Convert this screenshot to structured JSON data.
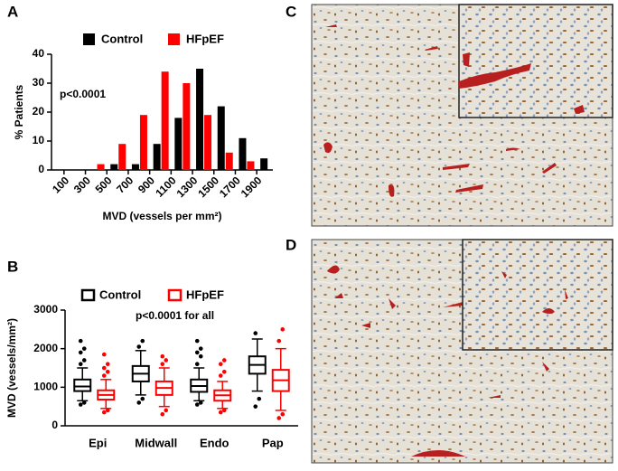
{
  "panel_labels": [
    "A",
    "B",
    "C",
    "D"
  ],
  "chart_data": [
    {
      "type": "bar",
      "annotation": "p<0.0001",
      "x_label": "MVD (vessels per mm²)",
      "y_label": "% Patients",
      "categories": [
        "100",
        "300",
        "500",
        "700",
        "900",
        "1100",
        "1300",
        "1500",
        "1700",
        "1900"
      ],
      "series": [
        {
          "name": "Control",
          "color": "#000000",
          "values": [
            0,
            0,
            2,
            2,
            9,
            18,
            35,
            22,
            11,
            4
          ]
        },
        {
          "name": "HFpEF",
          "color": "#ff0000",
          "values": [
            0,
            2,
            9,
            19,
            34,
            30,
            19,
            6,
            3,
            0
          ]
        }
      ],
      "ylim": [
        0,
        40
      ],
      "yticks": [
        0,
        10,
        20,
        30,
        40
      ],
      "legend": "top"
    },
    {
      "type": "box",
      "annotation": "p<0.0001 for all",
      "y_label": "MVD (vessels/mm²)",
      "categories": [
        "Epi",
        "Midwall",
        "Endo",
        "Pap"
      ],
      "series": [
        {
          "name": "Control",
          "color": "#000000",
          "min": [
            650,
            800,
            650,
            900
          ],
          "q1": [
            900,
            1150,
            880,
            1350
          ],
          "median": [
            1020,
            1350,
            1030,
            1580
          ],
          "q3": [
            1200,
            1550,
            1200,
            1800
          ],
          "max": [
            1500,
            1950,
            1500,
            2250
          ],
          "outliers": [
            [
              550,
              600,
              1600,
              1700,
              1900,
              2000,
              2200
            ],
            [
              600,
              700,
              2050,
              2200
            ],
            [
              550,
              600,
              1600,
              1800,
              1900,
              2000,
              2200
            ],
            [
              500,
              700,
              2400
            ]
          ]
        },
        {
          "name": "HFpEF",
          "color": "#ff0000",
          "min": [
            450,
            500,
            450,
            400
          ],
          "q1": [
            680,
            800,
            650,
            900
          ],
          "median": [
            800,
            980,
            790,
            1180
          ],
          "q3": [
            920,
            1150,
            920,
            1450
          ],
          "max": [
            1200,
            1500,
            1150,
            2000
          ],
          "outliers": [
            [
              350,
              400,
              1300,
              1400,
              1500,
              1600,
              1850
            ],
            [
              300,
              400,
              1600,
              1700,
              1800
            ],
            [
              350,
              400,
              1300,
              1400,
              1600,
              1700
            ],
            [
              200,
              300,
              2200,
              2500
            ]
          ]
        }
      ],
      "ylim": [
        0,
        3000
      ],
      "yticks": [
        0,
        1000,
        2000,
        3000
      ],
      "legend": "top"
    }
  ]
}
